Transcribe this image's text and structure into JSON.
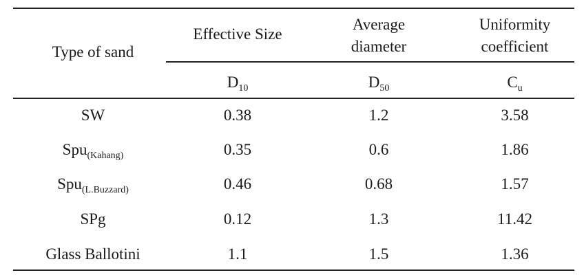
{
  "table": {
    "headers": {
      "type_of_sand": "Type of sand",
      "effective_size": "Effective Size",
      "average_diameter_line1": "Average",
      "average_diameter_line2": "diameter",
      "uniformity_line1": "Uniformity",
      "uniformity_line2": "coefficient"
    },
    "symbols": {
      "d10_main": "D",
      "d10_sub": "10",
      "d50_main": "D",
      "d50_sub": "50",
      "cu_main": "C",
      "cu_sub": "u"
    },
    "rows": [
      {
        "type_main": "SW",
        "type_sub": "",
        "d10": "0.38",
        "d50": "1.2",
        "cu": "3.58"
      },
      {
        "type_main": "Spu",
        "type_sub": "(Kahang)",
        "d10": "0.35",
        "d50": "0.6",
        "cu": "1.86"
      },
      {
        "type_main": "Spu",
        "type_sub": "(L.Buzzard)",
        "d10": "0.46",
        "d50": "0.68",
        "cu": "1.57"
      },
      {
        "type_main": "SPg",
        "type_sub": "",
        "d10": "0.12",
        "d50": "1.3",
        "cu": "11.42"
      },
      {
        "type_main": "Glass Ballotini",
        "type_sub": "",
        "d10": "1.1",
        "d50": "1.5",
        "cu": "1.36"
      }
    ]
  }
}
